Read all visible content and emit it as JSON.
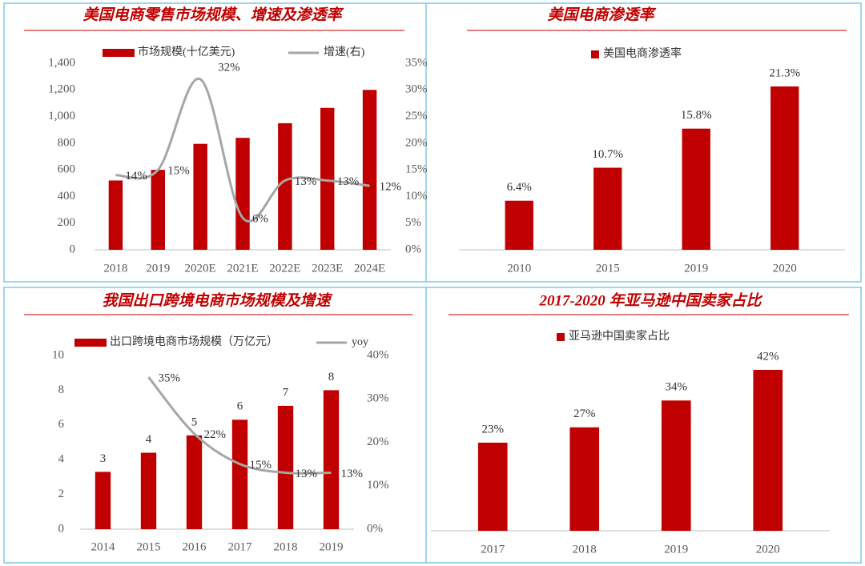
{
  "chart_data": [
    {
      "type": "combo",
      "title": "美国电商零售市场规模、增速及渗透率",
      "categories": [
        "2018",
        "2019",
        "2020E",
        "2021E",
        "2022E",
        "2023E",
        "2024E"
      ],
      "series": [
        {
          "name": "市场规模(十亿美元)",
          "color": "#c00000",
          "type": "bar",
          "values": [
            520,
            600,
            795,
            840,
            950,
            1065,
            1200
          ]
        },
        {
          "name": "增速(右)",
          "color": "#a6a6a6",
          "type": "line",
          "axis": "y2",
          "values": [
            14,
            15,
            32,
            6,
            13,
            13,
            12
          ],
          "value_labels": [
            "14%",
            "15%",
            "32%",
            "6%",
            "13%",
            "13%",
            "12%"
          ]
        }
      ],
      "ylim": [
        0,
        1400
      ],
      "yticks": [
        0,
        200,
        400,
        600,
        800,
        {
          "value": 1000,
          "label": "1,000"
        },
        {
          "value": 1200,
          "label": "1,200"
        },
        {
          "value": 1400,
          "label": "1,400"
        }
      ],
      "y2lim": [
        0,
        35
      ],
      "y2ticks": [
        {
          "value": 0,
          "label": "0%"
        },
        {
          "value": 5,
          "label": "5%"
        },
        {
          "value": 10,
          "label": "10%"
        },
        {
          "value": 15,
          "label": "15%"
        },
        {
          "value": 20,
          "label": "20%"
        },
        {
          "value": 25,
          "label": "25%"
        },
        {
          "value": 30,
          "label": "30%"
        },
        {
          "value": 35,
          "label": "35%"
        }
      ],
      "grid": false
    },
    {
      "type": "bar",
      "title": "美国电商渗透率",
      "categories": [
        "2010",
        "2015",
        "2019",
        "2020"
      ],
      "series": [
        {
          "name": "美国电商渗透率",
          "color": "#c00000",
          "type": "bar",
          "values": [
            6.4,
            10.7,
            15.8,
            21.3
          ],
          "value_labels": [
            "6.4%",
            "10.7%",
            "15.8%",
            "21.3%"
          ]
        }
      ],
      "grid": false
    },
    {
      "type": "combo",
      "title": "我国出口跨境电商市场规模及增速",
      "categories": [
        "2014",
        "2015",
        "2016",
        "2017",
        "2018",
        "2019"
      ],
      "series": [
        {
          "name": "出口跨境电商市场规模（万亿元）",
          "color": "#c00000",
          "type": "bar",
          "values": [
            3.3,
            4.4,
            5.4,
            6.3,
            7.1,
            8.0
          ],
          "value_labels": [
            "3",
            "4",
            "5",
            "6",
            "7",
            "8"
          ]
        },
        {
          "name": "yoy",
          "color": "#a6a6a6",
          "type": "line",
          "axis": "y2",
          "values": [
            null,
            35,
            22,
            15,
            13,
            13
          ],
          "value_labels": [
            null,
            "35%",
            "22%",
            "15%",
            "13%",
            "13%"
          ]
        }
      ],
      "ylim": [
        0,
        10
      ],
      "yticks": [
        0,
        2,
        4,
        6,
        8,
        10
      ],
      "y2lim": [
        0,
        40
      ],
      "y2ticks": [
        {
          "value": 0,
          "label": "0%"
        },
        {
          "value": 10,
          "label": "10%"
        },
        {
          "value": 20,
          "label": "20%"
        },
        {
          "value": 30,
          "label": "30%"
        },
        {
          "value": 40,
          "label": "40%"
        }
      ],
      "grid": false
    },
    {
      "type": "bar",
      "title": "2017-2020 年亚马逊中国卖家占比",
      "categories": [
        "2017",
        "2018",
        "2019",
        "2020"
      ],
      "series": [
        {
          "name": "亚马逊中国卖家占比",
          "color": "#c00000",
          "type": "bar",
          "values": [
            23,
            27,
            34,
            42
          ],
          "value_labels": [
            "23%",
            "27%",
            "34%",
            "42%"
          ]
        }
      ],
      "grid": false
    }
  ]
}
